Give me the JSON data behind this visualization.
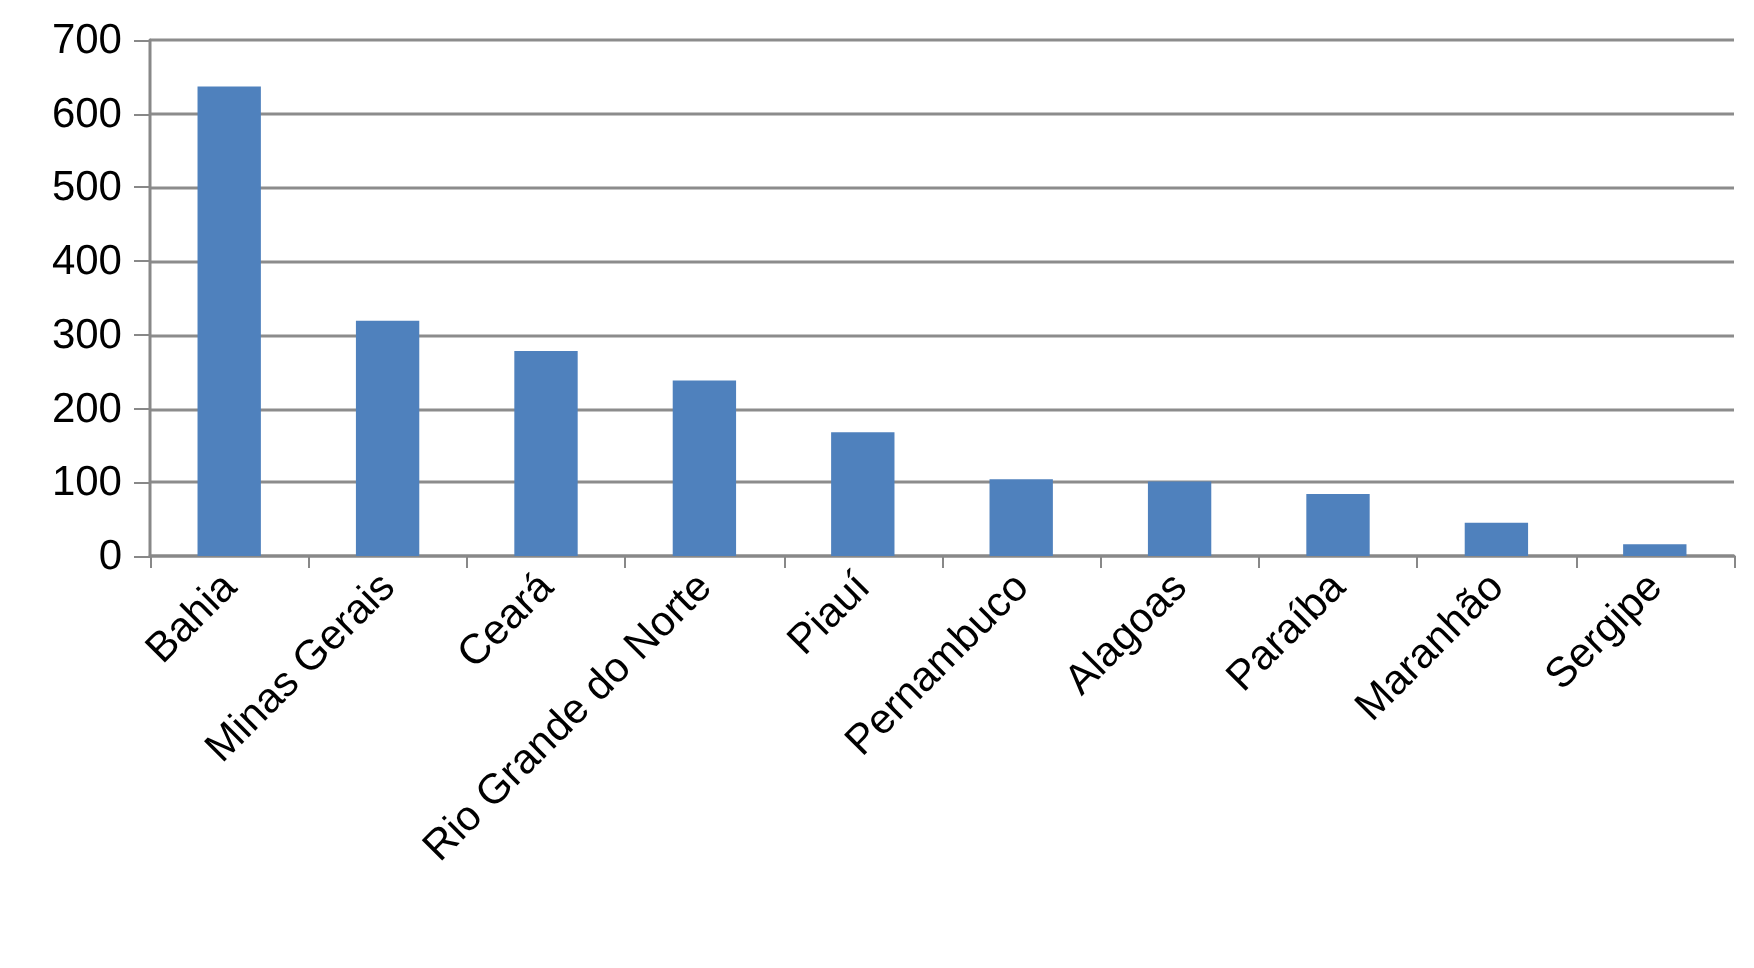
{
  "chart_data": {
    "type": "bar",
    "categories": [
      "Bahia",
      "Minas Gerais",
      "Ceará",
      "Rio Grande do Norte",
      "Piauí",
      "Pernambuco",
      "Alagoas",
      "Paraíba",
      "Maranhão",
      "Sergipe"
    ],
    "values": [
      637,
      319,
      278,
      238,
      168,
      104,
      101,
      84,
      45,
      16
    ],
    "color": "#4f81bd",
    "ylim": [
      0,
      700
    ],
    "yticks": [
      0,
      100,
      200,
      300,
      400,
      500,
      600,
      700
    ],
    "grid": "y"
  }
}
